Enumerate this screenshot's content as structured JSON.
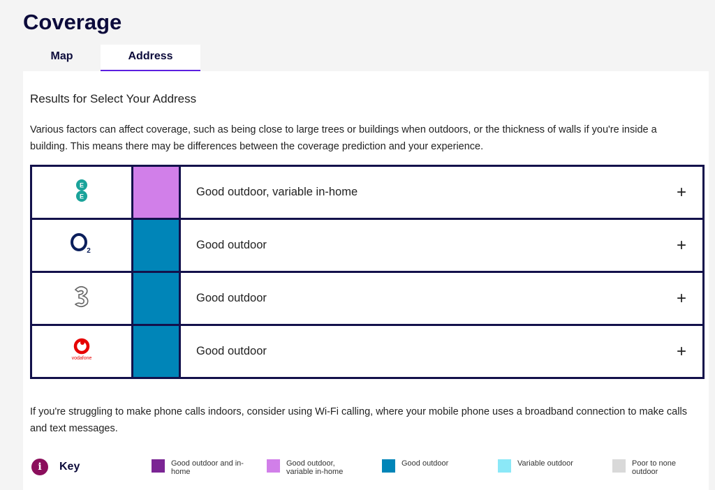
{
  "page_title": "Coverage",
  "tabs": [
    {
      "label": "Map",
      "active": false
    },
    {
      "label": "Address",
      "active": true
    }
  ],
  "results_heading": "Results for Select Your Address",
  "description": "Various factors can affect coverage, such as being close to large trees or buildings when outdoors, or the thickness of walls if you're inside a building. This means there may be differences between the coverage prediction and your experience.",
  "operators": [
    {
      "logo": "ee-logo",
      "color": "#d17fe9",
      "label": "Good outdoor, variable in-home",
      "expand": "+"
    },
    {
      "logo": "o2-logo",
      "color": "#0085b8",
      "label": "Good outdoor",
      "expand": "+"
    },
    {
      "logo": "three-logo",
      "color": "#0085b8",
      "label": "Good outdoor",
      "expand": "+"
    },
    {
      "logo": "vodafone-logo",
      "logo_text": "vodafone",
      "color": "#0085b8",
      "label": "Good outdoor",
      "expand": "+"
    }
  ],
  "wifi_note": "If you're struggling to make phone calls indoors, consider using Wi-Fi calling, where your mobile phone uses a broadband connection to make calls and text messages.",
  "key": {
    "title": "Key",
    "items": [
      {
        "label": "Good outdoor and in-home",
        "color": "#7b2594"
      },
      {
        "label": "Good outdoor, variable in-home",
        "color": "#d17fe9"
      },
      {
        "label": "Good outdoor",
        "color": "#0085b8"
      },
      {
        "label": "Variable outdoor",
        "color": "#8be8f7"
      },
      {
        "label": "Poor to none outdoor",
        "color": "#d9d9d9"
      }
    ]
  }
}
